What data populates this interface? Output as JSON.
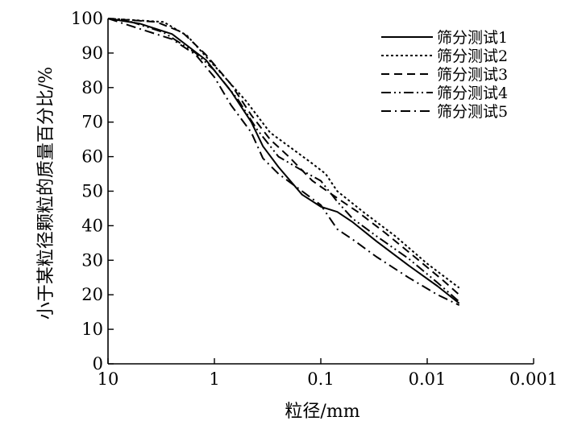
{
  "chart_data": {
    "type": "line",
    "xlabel": "粒径/mm",
    "ylabel": "小于某粒径颗粒的质量百分比/%",
    "x_scale": "log",
    "x_reversed": true,
    "xlim": [
      10,
      0.001
    ],
    "ylim": [
      0,
      100
    ],
    "x_ticks": [
      {
        "value": 10,
        "label": "10"
      },
      {
        "value": 1,
        "label": "1"
      },
      {
        "value": 0.1,
        "label": "0.1"
      },
      {
        "value": 0.01,
        "label": "0.01"
      },
      {
        "value": 0.001,
        "label": "0.001"
      }
    ],
    "y_ticks": [
      {
        "value": 0,
        "label": "0"
      },
      {
        "value": 10,
        "label": "10"
      },
      {
        "value": 20,
        "label": "20"
      },
      {
        "value": 30,
        "label": "30"
      },
      {
        "value": 40,
        "label": "40"
      },
      {
        "value": 50,
        "label": "50"
      },
      {
        "value": 60,
        "label": "60"
      },
      {
        "value": 70,
        "label": "70"
      },
      {
        "value": 80,
        "label": "80"
      },
      {
        "value": 90,
        "label": "90"
      },
      {
        "value": 100,
        "label": "100"
      }
    ],
    "grid": false,
    "legend_position": "top-right",
    "series": [
      {
        "name": "筛分测试1",
        "dash": "solid",
        "points": [
          [
            10,
            100
          ],
          [
            5,
            98.5
          ],
          [
            2.5,
            95.5
          ],
          [
            1.2,
            88
          ],
          [
            0.7,
            79
          ],
          [
            0.45,
            70
          ],
          [
            0.35,
            63
          ],
          [
            0.25,
            57
          ],
          [
            0.15,
            49
          ],
          [
            0.1,
            45.5
          ],
          [
            0.07,
            44
          ],
          [
            0.05,
            41
          ],
          [
            0.03,
            35.5
          ],
          [
            0.015,
            28.5
          ],
          [
            0.008,
            22.5
          ],
          [
            0.005,
            17.5
          ]
        ]
      },
      {
        "name": "筛分测试2",
        "dash": "3,3",
        "points": [
          [
            10,
            100
          ],
          [
            3,
            99
          ],
          [
            1.8,
            95
          ],
          [
            1.2,
            89
          ],
          [
            0.8,
            83
          ],
          [
            0.5,
            76
          ],
          [
            0.3,
            67
          ],
          [
            0.2,
            63
          ],
          [
            0.12,
            58
          ],
          [
            0.09,
            55
          ],
          [
            0.07,
            50
          ],
          [
            0.04,
            44
          ],
          [
            0.02,
            37
          ],
          [
            0.01,
            29
          ],
          [
            0.005,
            22
          ]
        ]
      },
      {
        "name": "筛分测试3",
        "dash": "10,6",
        "points": [
          [
            10,
            100
          ],
          [
            3.5,
            99
          ],
          [
            2,
            96
          ],
          [
            1.2,
            89.5
          ],
          [
            0.7,
            81
          ],
          [
            0.45,
            72
          ],
          [
            0.3,
            65
          ],
          [
            0.2,
            60
          ],
          [
            0.12,
            53
          ],
          [
            0.07,
            48
          ],
          [
            0.045,
            44
          ],
          [
            0.025,
            38
          ],
          [
            0.012,
            30
          ],
          [
            0.007,
            24
          ],
          [
            0.005,
            20
          ]
        ]
      },
      {
        "name": "筛分测试4",
        "dash": "12,4,2,4,2,4",
        "points": [
          [
            10,
            100
          ],
          [
            6,
            99
          ],
          [
            3,
            96
          ],
          [
            1.5,
            90
          ],
          [
            1,
            85
          ],
          [
            0.6,
            76.5
          ],
          [
            0.4,
            68
          ],
          [
            0.25,
            60
          ],
          [
            0.15,
            56
          ],
          [
            0.1,
            53
          ],
          [
            0.07,
            47
          ],
          [
            0.05,
            42
          ],
          [
            0.03,
            37
          ],
          [
            0.015,
            30.5
          ],
          [
            0.008,
            23.5
          ],
          [
            0.005,
            18
          ]
        ]
      },
      {
        "name": "筛分测试5",
        "dash": "12,5,2,5",
        "points": [
          [
            10,
            100
          ],
          [
            5,
            97
          ],
          [
            2.5,
            94
          ],
          [
            1.5,
            89.5
          ],
          [
            1,
            83
          ],
          [
            0.7,
            75
          ],
          [
            0.45,
            67
          ],
          [
            0.35,
            59.5
          ],
          [
            0.25,
            55
          ],
          [
            0.15,
            50
          ],
          [
            0.1,
            46
          ],
          [
            0.07,
            39
          ],
          [
            0.05,
            36
          ],
          [
            0.03,
            31
          ],
          [
            0.015,
            25
          ],
          [
            0.008,
            20
          ],
          [
            0.005,
            17
          ]
        ]
      }
    ]
  }
}
